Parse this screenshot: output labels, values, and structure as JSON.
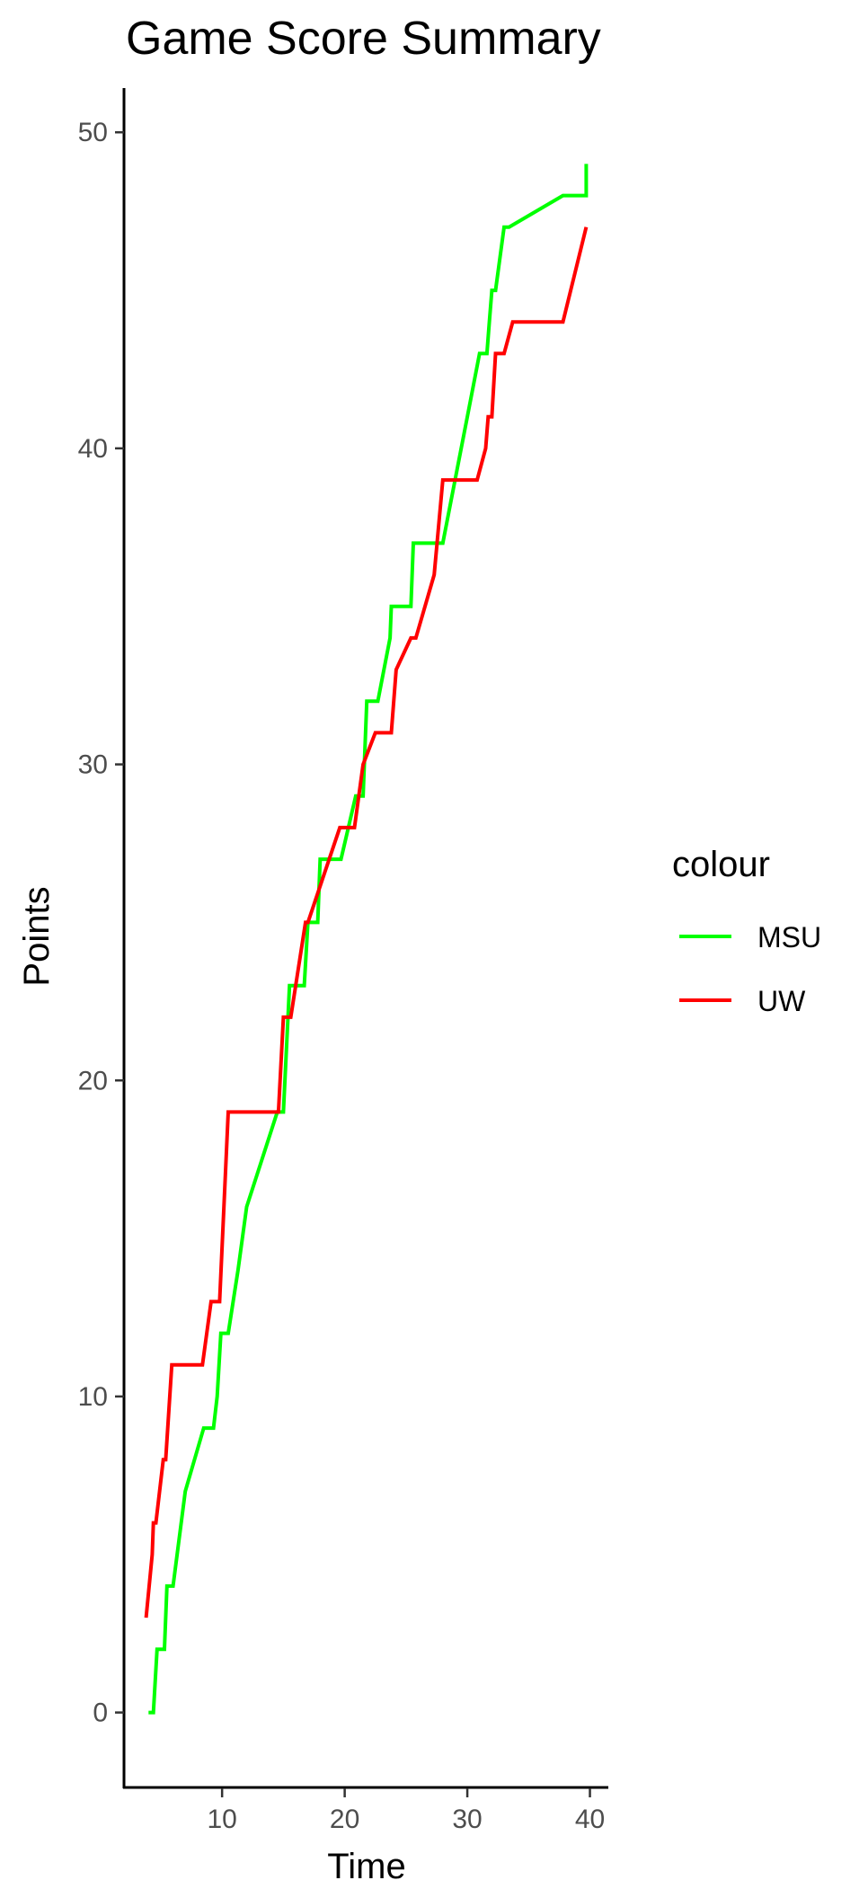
{
  "chart_data": {
    "type": "line",
    "title": "Game Score Summary",
    "xlabel": "Time",
    "ylabel": "Points",
    "xlim": [
      2,
      41.5
    ],
    "ylim": [
      -2.4,
      51.4
    ],
    "xticks": [
      10,
      20,
      30,
      40
    ],
    "yticks": [
      0,
      10,
      20,
      30,
      40,
      50
    ],
    "grid": false,
    "legend": {
      "title": "colour",
      "position": "right"
    },
    "series": [
      {
        "name": "MSU",
        "color": "#00FF00",
        "points": [
          [
            4.0,
            0
          ],
          [
            4.4,
            0
          ],
          [
            4.7,
            2
          ],
          [
            5.3,
            2
          ],
          [
            5.5,
            4
          ],
          [
            6.0,
            4
          ],
          [
            7.0,
            7
          ],
          [
            8.5,
            9
          ],
          [
            9.3,
            9
          ],
          [
            9.6,
            10
          ],
          [
            9.9,
            12
          ],
          [
            10.5,
            12
          ],
          [
            11.3,
            14
          ],
          [
            12.0,
            16
          ],
          [
            14.5,
            19
          ],
          [
            15.0,
            19
          ],
          [
            15.5,
            23
          ],
          [
            16.7,
            23
          ],
          [
            17.0,
            25
          ],
          [
            17.8,
            25
          ],
          [
            18.0,
            27
          ],
          [
            19.7,
            27
          ],
          [
            20.9,
            29
          ],
          [
            21.5,
            29
          ],
          [
            21.8,
            32
          ],
          [
            22.7,
            32
          ],
          [
            23.7,
            34
          ],
          [
            23.8,
            35
          ],
          [
            25.4,
            35
          ],
          [
            25.6,
            37
          ],
          [
            28.0,
            37
          ],
          [
            30.0,
            41
          ],
          [
            31.0,
            43
          ],
          [
            31.6,
            43
          ],
          [
            31.8,
            44
          ],
          [
            32.0,
            45
          ],
          [
            32.3,
            45
          ],
          [
            33.0,
            47
          ],
          [
            33.4,
            47
          ],
          [
            37.8,
            48
          ],
          [
            39.7,
            48
          ],
          [
            39.7,
            49
          ]
        ]
      },
      {
        "name": "UW",
        "color": "#FF0000",
        "points": [
          [
            3.8,
            3
          ],
          [
            4.3,
            5
          ],
          [
            4.4,
            6
          ],
          [
            4.6,
            6
          ],
          [
            5.2,
            8
          ],
          [
            5.4,
            8
          ],
          [
            5.9,
            11
          ],
          [
            8.4,
            11
          ],
          [
            9.1,
            13
          ],
          [
            9.8,
            13
          ],
          [
            10.5,
            19
          ],
          [
            14.6,
            19
          ],
          [
            15.0,
            22
          ],
          [
            15.6,
            22
          ],
          [
            16.8,
            25
          ],
          [
            17.0,
            25
          ],
          [
            19.6,
            28
          ],
          [
            20.8,
            28
          ],
          [
            21.5,
            30
          ],
          [
            22.5,
            31
          ],
          [
            23.8,
            31
          ],
          [
            24.2,
            33
          ],
          [
            25.4,
            34
          ],
          [
            25.8,
            34
          ],
          [
            27.3,
            36
          ],
          [
            28.0,
            39
          ],
          [
            30.8,
            39
          ],
          [
            31.5,
            40
          ],
          [
            31.7,
            41
          ],
          [
            32.0,
            41
          ],
          [
            32.3,
            43
          ],
          [
            33.0,
            43
          ],
          [
            33.7,
            44
          ],
          [
            37.8,
            44
          ],
          [
            39.7,
            47
          ]
        ]
      }
    ]
  }
}
